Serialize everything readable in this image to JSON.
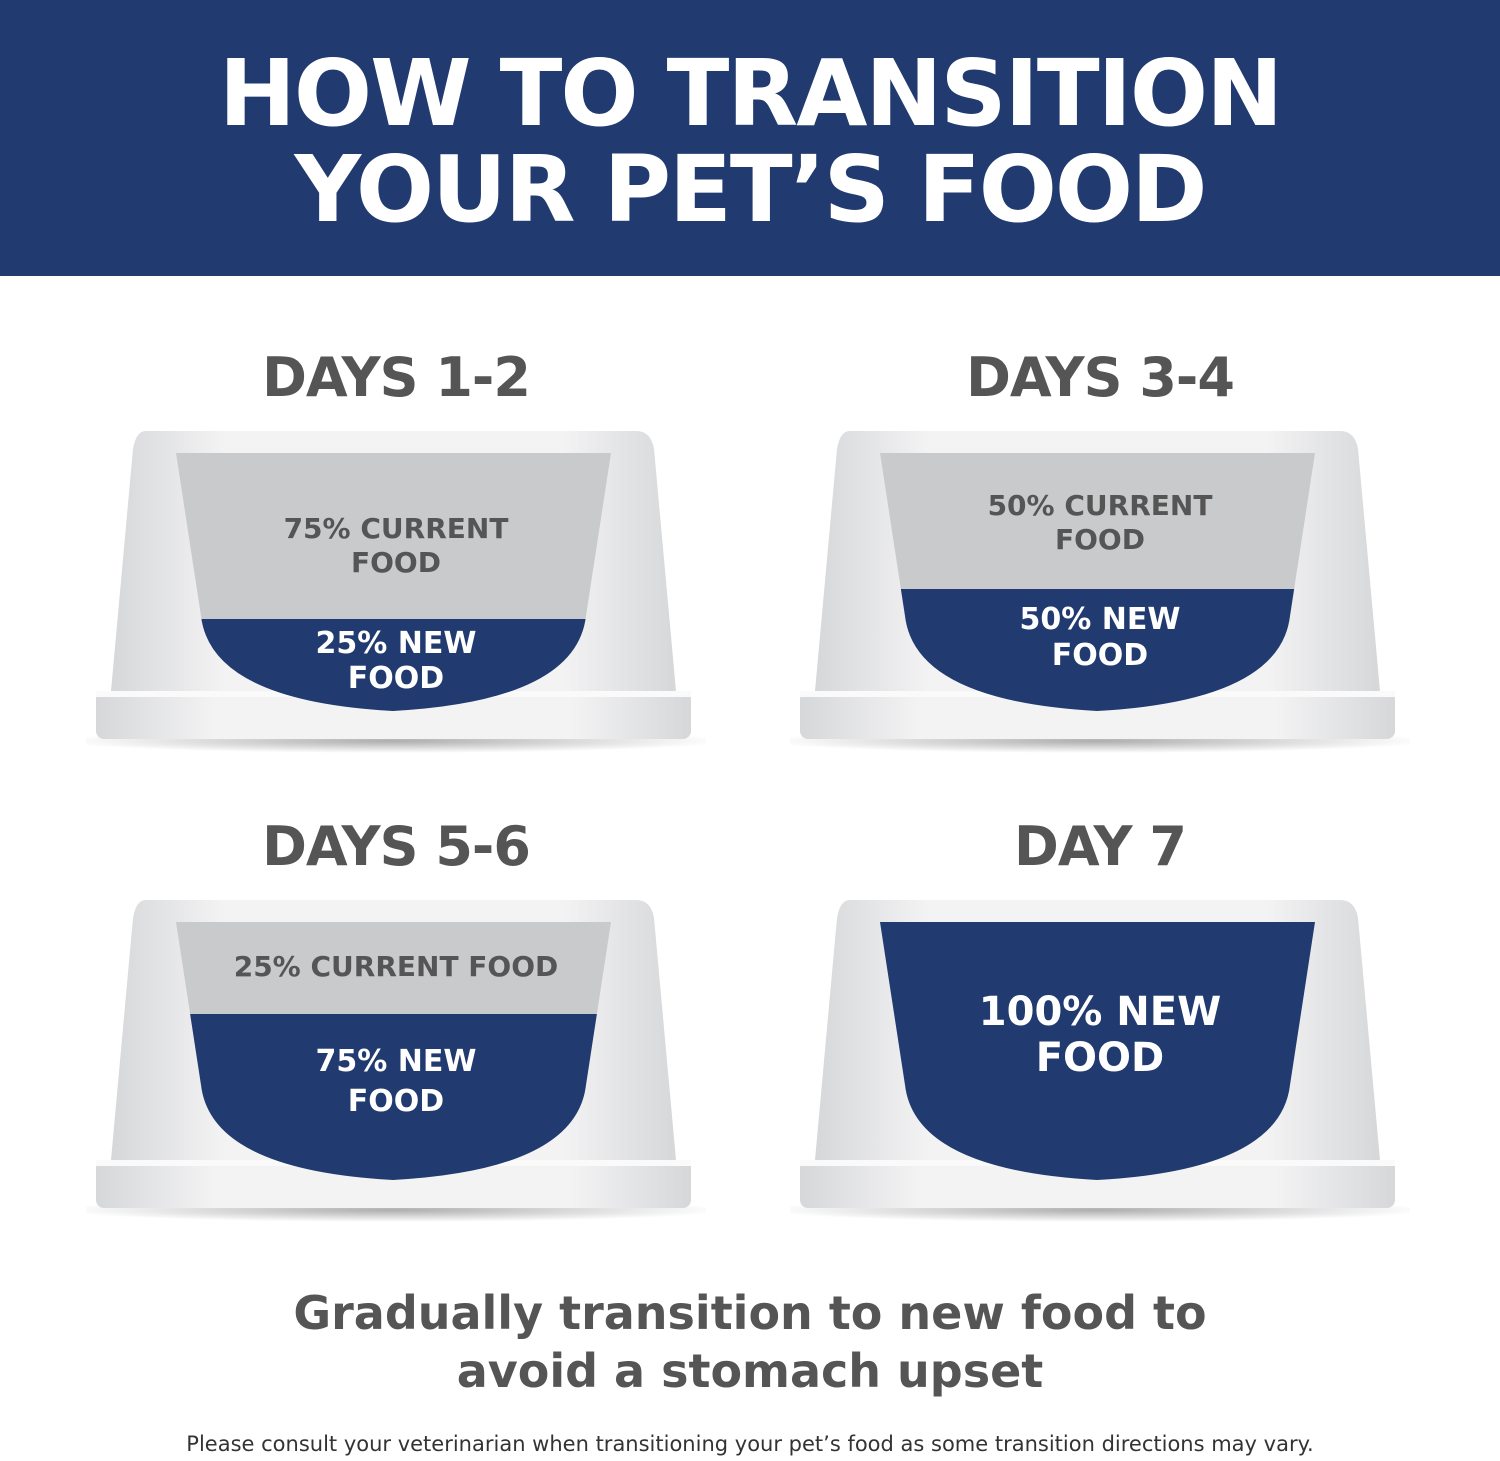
{
  "header": {
    "title_line1": "HOW TO TRANSITION",
    "title_line2": "YOUR PET’S FOOD"
  },
  "colors": {
    "brand_blue": "#213a6f",
    "current_food_gray": "#c9cacc",
    "bowl_white": "#eeeff0",
    "text_gray": "#555555"
  },
  "stages": [
    {
      "heading": "DAYS 1-2",
      "current_label": "75% CURRENT FOOD",
      "new_label_line1": "25% NEW",
      "new_label_line2": "FOOD",
      "current_line1": "75% CURRENT",
      "current_line2": "FOOD",
      "new_fraction": 0.25
    },
    {
      "heading": "DAYS 3-4",
      "current_line1": "50% CURRENT",
      "current_line2": "FOOD",
      "new_label_line1": "50% NEW",
      "new_label_line2": "FOOD",
      "new_fraction": 0.5
    },
    {
      "heading": "DAYS 5-6",
      "current_line1": "25% CURRENT FOOD",
      "new_label_line1": "75% NEW",
      "new_label_line2": "FOOD",
      "new_fraction": 0.75
    },
    {
      "heading": "DAY 7",
      "new_label_line1": "100% NEW",
      "new_label_line2": "FOOD",
      "new_fraction": 1.0
    }
  ],
  "footer": {
    "tagline_line1": "Gradually transition to new food to",
    "tagline_line2": "avoid a stomach upset",
    "disclaimer": "Please consult your veterinarian when transitioning your pet’s food as some transition directions may vary."
  }
}
